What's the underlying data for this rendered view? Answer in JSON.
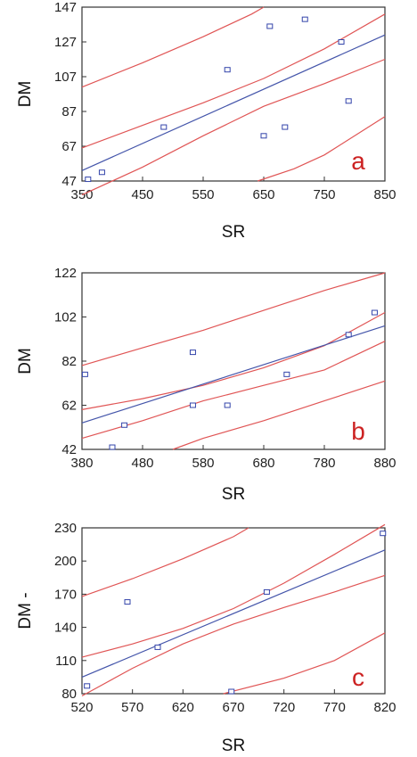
{
  "colors": {
    "fit": "#4455aa",
    "band": "#e05555",
    "point": "#3344aa",
    "letter": "#cc2222",
    "frame": "#333333"
  },
  "chart_data": [
    {
      "type": "scatter",
      "panel": "a",
      "xlabel": "SR",
      "ylabel": "DM",
      "xlim": [
        350,
        850
      ],
      "ylim": [
        47,
        147
      ],
      "x_ticks": [
        "350",
        "450",
        "550",
        "650",
        "750",
        "850"
      ],
      "y_ticks": [
        "47",
        "67",
        "87",
        "107",
        "127",
        "147"
      ],
      "points": [
        [
          360,
          48
        ],
        [
          383,
          52
        ],
        [
          485,
          78
        ],
        [
          590,
          111
        ],
        [
          650,
          73
        ],
        [
          660,
          136
        ],
        [
          685,
          78
        ],
        [
          718,
          140
        ],
        [
          778,
          127
        ],
        [
          790,
          93
        ]
      ],
      "fit_line": [
        [
          350,
          53
        ],
        [
          850,
          131
        ]
      ],
      "confidence_band": {
        "upper": [
          [
            350,
            66
          ],
          [
            450,
            79
          ],
          [
            550,
            92
          ],
          [
            650,
            106
          ],
          [
            750,
            123
          ],
          [
            850,
            143
          ]
        ],
        "lower": [
          [
            350,
            39
          ],
          [
            450,
            55
          ],
          [
            550,
            73
          ],
          [
            650,
            90
          ],
          [
            750,
            103
          ],
          [
            850,
            117
          ]
        ]
      },
      "prediction_band": {
        "upper": [
          [
            350,
            101
          ],
          [
            450,
            115
          ],
          [
            550,
            130
          ],
          [
            630,
            143
          ],
          [
            650,
            147
          ]
        ],
        "lower": [
          [
            640,
            47
          ],
          [
            700,
            54
          ],
          [
            750,
            62
          ],
          [
            850,
            84
          ]
        ]
      }
    },
    {
      "type": "scatter",
      "panel": "b",
      "xlabel": "SR",
      "ylabel": "DM",
      "xlim": [
        380,
        880
      ],
      "ylim": [
        42,
        122
      ],
      "x_ticks": [
        "380",
        "480",
        "580",
        "680",
        "780",
        "880"
      ],
      "y_ticks": [
        "42",
        "62",
        "82",
        "102",
        "122"
      ],
      "points": [
        [
          385,
          76
        ],
        [
          430,
          43
        ],
        [
          450,
          53
        ],
        [
          563,
          86
        ],
        [
          563,
          62
        ],
        [
          620,
          62
        ],
        [
          718,
          76
        ],
        [
          820,
          94
        ],
        [
          863,
          104
        ]
      ],
      "fit_line": [
        [
          380,
          54
        ],
        [
          880,
          98
        ]
      ],
      "confidence_band": {
        "upper": [
          [
            380,
            60
          ],
          [
            480,
            65
          ],
          [
            580,
            71
          ],
          [
            680,
            79
          ],
          [
            780,
            89
          ],
          [
            880,
            104
          ]
        ],
        "lower": [
          [
            380,
            47
          ],
          [
            480,
            55
          ],
          [
            580,
            64
          ],
          [
            680,
            71
          ],
          [
            780,
            78
          ],
          [
            880,
            91
          ]
        ]
      },
      "prediction_band": {
        "upper": [
          [
            380,
            80
          ],
          [
            480,
            88
          ],
          [
            580,
            96
          ],
          [
            680,
            105
          ],
          [
            780,
            114
          ],
          [
            880,
            122
          ]
        ],
        "lower": [
          [
            530,
            42
          ],
          [
            580,
            47
          ],
          [
            680,
            55
          ],
          [
            780,
            64
          ],
          [
            880,
            73
          ]
        ]
      }
    },
    {
      "type": "scatter",
      "panel": "c",
      "xlabel": "SR",
      "ylabel": "DM -",
      "xlim": [
        520,
        820
      ],
      "ylim": [
        80,
        230
      ],
      "x_ticks": [
        "520",
        "570",
        "620",
        "670",
        "720",
        "770",
        "820"
      ],
      "y_ticks": [
        "80",
        "110",
        "140",
        "170",
        "200",
        "230"
      ],
      "points": [
        [
          525,
          87
        ],
        [
          565,
          163
        ],
        [
          595,
          122
        ],
        [
          668,
          82
        ],
        [
          703,
          172
        ],
        [
          818,
          225
        ]
      ],
      "fit_line": [
        [
          520,
          95
        ],
        [
          820,
          210
        ]
      ],
      "confidence_band": {
        "upper": [
          [
            520,
            113
          ],
          [
            570,
            125
          ],
          [
            620,
            139
          ],
          [
            670,
            157
          ],
          [
            720,
            180
          ],
          [
            770,
            206
          ],
          [
            820,
            233
          ]
        ],
        "lower": [
          [
            520,
            78
          ],
          [
            570,
            103
          ],
          [
            620,
            125
          ],
          [
            670,
            143
          ],
          [
            720,
            158
          ],
          [
            770,
            172
          ],
          [
            820,
            187
          ]
        ]
      },
      "prediction_band": {
        "upper": [
          [
            520,
            168
          ],
          [
            570,
            184
          ],
          [
            620,
            202
          ],
          [
            670,
            222
          ],
          [
            685,
            230
          ]
        ],
        "lower": [
          [
            660,
            80
          ],
          [
            720,
            94
          ],
          [
            770,
            110
          ],
          [
            820,
            135
          ]
        ]
      }
    }
  ]
}
